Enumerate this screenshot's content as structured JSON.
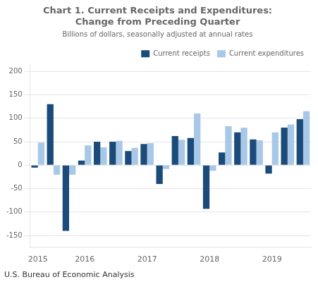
{
  "chart_data": {
    "type": "bar",
    "title": [
      "Chart 1. Current Receipts and Expenditures:",
      "Change from Preceding Quarter"
    ],
    "subtitle": "Billions of dollars, seasonally adjusted at annual rates",
    "annotations": [
      "U.S. Bureau of Economic Analysis"
    ],
    "categories": [
      "2015",
      null,
      null,
      "2016",
      null,
      null,
      null,
      "2017",
      null,
      null,
      null,
      "2018",
      null,
      null,
      null,
      "2019",
      null,
      null
    ],
    "series": [
      {
        "name": "Current receipts",
        "color": "#1a4b7a",
        "values": [
          -5,
          130,
          -140,
          10,
          50,
          50,
          30,
          45,
          -40,
          62,
          58,
          -93,
          27,
          70,
          55,
          -18,
          80,
          98
        ]
      },
      {
        "name": "Current expenditures",
        "color": "#a8c8e8",
        "values": [
          48,
          -20,
          -20,
          42,
          38,
          52,
          37,
          47,
          -8,
          54,
          110,
          -12,
          83,
          80,
          53,
          70,
          87,
          115
        ]
      }
    ],
    "ylim": [
      -175,
      215
    ],
    "yticks": [
      -150,
      -100,
      -50,
      0,
      50,
      100,
      150,
      200
    ],
    "grid": true,
    "legend": "upper right"
  }
}
